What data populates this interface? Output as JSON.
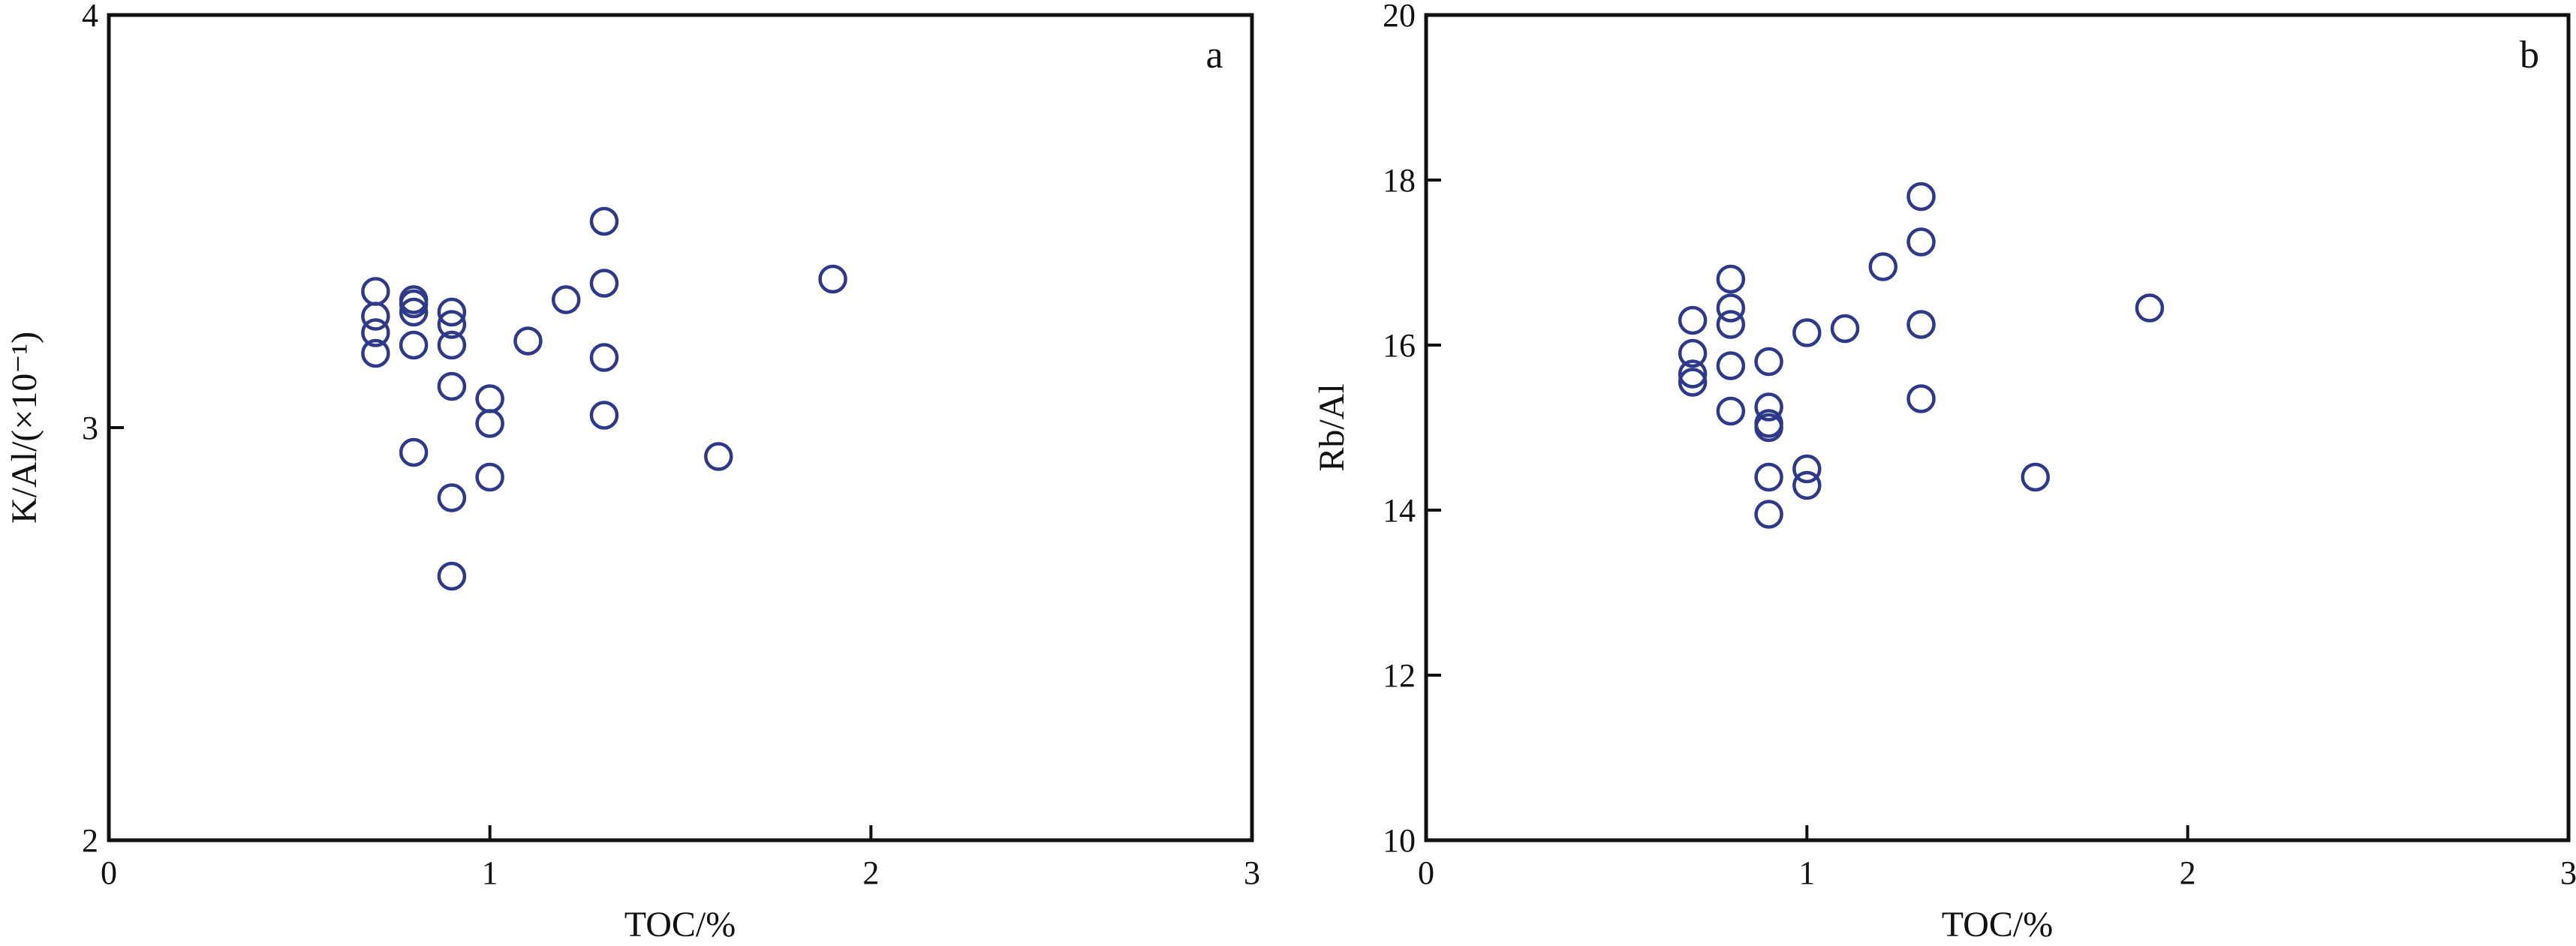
{
  "colors": {
    "marker": "#2e3a87",
    "axis": "#111111",
    "background": "#ffffff"
  },
  "chart_data": [
    {
      "type": "scatter",
      "panel_label": "a",
      "xlabel": "TOC/%",
      "ylabel": "K/Al/(×10⁻¹)",
      "xlim": [
        0,
        3
      ],
      "ylim": [
        2,
        4
      ],
      "xticks": [
        "0",
        "1",
        "2",
        "3"
      ],
      "yticks": [
        "2",
        "3",
        "4"
      ],
      "grid": false,
      "legend": "none",
      "points": [
        {
          "x": 0.7,
          "y": 3.33
        },
        {
          "x": 0.7,
          "y": 3.27
        },
        {
          "x": 0.7,
          "y": 3.23
        },
        {
          "x": 0.7,
          "y": 3.18
        },
        {
          "x": 0.8,
          "y": 3.31
        },
        {
          "x": 0.8,
          "y": 3.3
        },
        {
          "x": 0.8,
          "y": 3.28
        },
        {
          "x": 0.8,
          "y": 3.2
        },
        {
          "x": 0.8,
          "y": 2.94
        },
        {
          "x": 0.9,
          "y": 3.28
        },
        {
          "x": 0.9,
          "y": 3.25
        },
        {
          "x": 0.9,
          "y": 3.2
        },
        {
          "x": 0.9,
          "y": 3.1
        },
        {
          "x": 0.9,
          "y": 2.83
        },
        {
          "x": 0.9,
          "y": 2.64
        },
        {
          "x": 1.0,
          "y": 3.07
        },
        {
          "x": 1.0,
          "y": 3.01
        },
        {
          "x": 1.0,
          "y": 2.88
        },
        {
          "x": 1.1,
          "y": 3.21
        },
        {
          "x": 1.2,
          "y": 3.31
        },
        {
          "x": 1.3,
          "y": 3.5
        },
        {
          "x": 1.3,
          "y": 3.35
        },
        {
          "x": 1.3,
          "y": 3.17
        },
        {
          "x": 1.3,
          "y": 3.03
        },
        {
          "x": 1.6,
          "y": 2.93
        },
        {
          "x": 1.9,
          "y": 3.36
        }
      ]
    },
    {
      "type": "scatter",
      "panel_label": "b",
      "xlabel": "TOC/%",
      "ylabel": "Rb/Al",
      "xlim": [
        0,
        3
      ],
      "ylim": [
        10,
        20
      ],
      "xticks": [
        "0",
        "1",
        "2",
        "3"
      ],
      "yticks": [
        "10",
        "12",
        "14",
        "16",
        "18",
        "20"
      ],
      "grid": false,
      "legend": "none",
      "points": [
        {
          "x": 0.7,
          "y": 16.3
        },
        {
          "x": 0.7,
          "y": 15.9
        },
        {
          "x": 0.7,
          "y": 15.65
        },
        {
          "x": 0.7,
          "y": 15.55
        },
        {
          "x": 0.8,
          "y": 16.8
        },
        {
          "x": 0.8,
          "y": 16.45
        },
        {
          "x": 0.8,
          "y": 16.25
        },
        {
          "x": 0.8,
          "y": 15.75
        },
        {
          "x": 0.8,
          "y": 15.2
        },
        {
          "x": 0.9,
          "y": 15.8
        },
        {
          "x": 0.9,
          "y": 15.25
        },
        {
          "x": 0.9,
          "y": 15.05
        },
        {
          "x": 0.9,
          "y": 15.0
        },
        {
          "x": 0.9,
          "y": 14.4
        },
        {
          "x": 0.9,
          "y": 13.95
        },
        {
          "x": 1.0,
          "y": 16.15
        },
        {
          "x": 1.0,
          "y": 14.5
        },
        {
          "x": 1.0,
          "y": 14.3
        },
        {
          "x": 1.1,
          "y": 16.2
        },
        {
          "x": 1.2,
          "y": 16.95
        },
        {
          "x": 1.3,
          "y": 17.8
        },
        {
          "x": 1.3,
          "y": 17.25
        },
        {
          "x": 1.3,
          "y": 16.25
        },
        {
          "x": 1.3,
          "y": 15.35
        },
        {
          "x": 1.6,
          "y": 14.4
        },
        {
          "x": 1.9,
          "y": 16.45
        }
      ]
    }
  ]
}
